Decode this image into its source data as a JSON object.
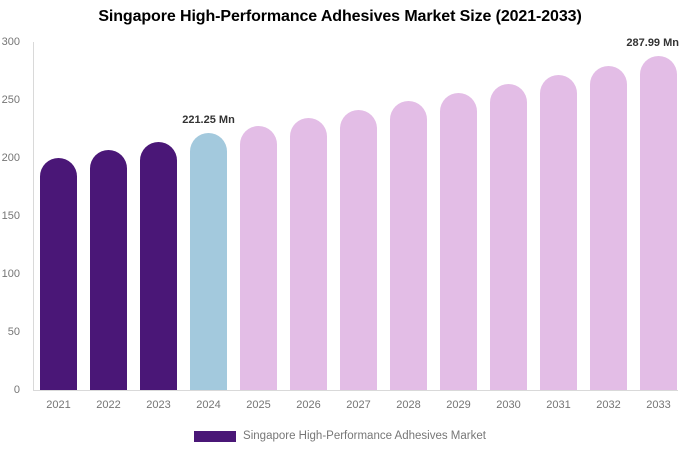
{
  "title": "Singapore High-Performance Adhesives Market Size (2021-2033)",
  "legend": {
    "label": "Singapore High-Performance Adhesives Market",
    "swatch_color": "#4a1777"
  },
  "chart_data": {
    "type": "bar",
    "title": "Singapore High-Performance Adhesives Market Size (2021-2033)",
    "xlabel": "",
    "ylabel": "",
    "unit": "Mn",
    "categories": [
      "2021",
      "2022",
      "2023",
      "2024",
      "2025",
      "2026",
      "2027",
      "2028",
      "2029",
      "2030",
      "2031",
      "2032",
      "2033"
    ],
    "values": [
      200,
      207,
      214,
      221.25,
      227.8,
      234.6,
      241.6,
      248.8,
      256.2,
      263.8,
      271.7,
      279.7,
      287.99
    ],
    "bar_groups": [
      "historical",
      "historical",
      "historical",
      "current",
      "forecast",
      "forecast",
      "forecast",
      "forecast",
      "forecast",
      "forecast",
      "forecast",
      "forecast",
      "forecast"
    ],
    "colors": {
      "historical": "#4a1777",
      "current": "#a3c9dd",
      "forecast": "#e3bde6"
    },
    "ylim": [
      0,
      300
    ],
    "yticks": [
      0,
      50,
      100,
      150,
      200,
      250,
      300
    ],
    "grid": false,
    "legend_position": "bottom",
    "axis_color": "#d9d9d9",
    "tick_color": "#757575",
    "data_labels": [
      {
        "category": "2024",
        "text": "221.25 Mn",
        "align": "center"
      },
      {
        "category": "2033",
        "text": "287.99 Mn",
        "align": "right"
      }
    ]
  }
}
